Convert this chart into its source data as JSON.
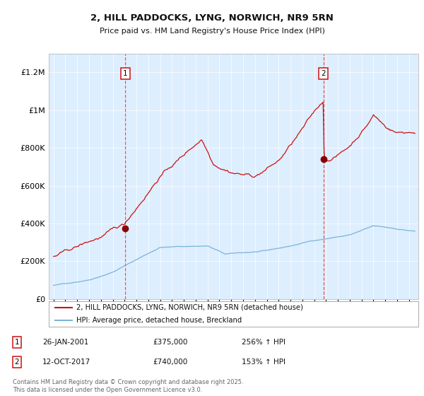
{
  "title_line1": "2, HILL PADDOCKS, LYNG, NORWICH, NR9 5RN",
  "title_line2": "Price paid vs. HM Land Registry's House Price Index (HPI)",
  "legend_line1": "2, HILL PADDOCKS, LYNG, NORWICH, NR9 5RN (detached house)",
  "legend_line2": "HPI: Average price, detached house, Breckland",
  "annotation1_date": "26-JAN-2001",
  "annotation1_price": "£375,000",
  "annotation1_hpi": "256% ↑ HPI",
  "annotation2_date": "12-OCT-2017",
  "annotation2_price": "£740,000",
  "annotation2_hpi": "153% ↑ HPI",
  "footer": "Contains HM Land Registry data © Crown copyright and database right 2025.\nThis data is licensed under the Open Government Licence v3.0.",
  "hpi_color": "#7ab4d8",
  "price_color": "#cc1111",
  "bg_color": "#ddeeff",
  "vline_color": "#ee3333",
  "sale1_color": "#880000",
  "sale2_color": "#880000",
  "box_edge_color": "#cc1111",
  "ylim_max": 1300000,
  "yticks": [
    0,
    200000,
    400000,
    600000,
    800000,
    1000000,
    1200000
  ],
  "ytick_labels": [
    "£0",
    "£200K",
    "£400K",
    "£600K",
    "£800K",
    "£1M",
    "£1.2M"
  ],
  "xlim_min": 1994.6,
  "xlim_max": 2025.8,
  "date1": 2001.069,
  "date2": 2017.775,
  "sale1_price": 375000,
  "sale2_price": 740000,
  "grid_color": "#ffffff",
  "spine_color": "#bbbbbb"
}
